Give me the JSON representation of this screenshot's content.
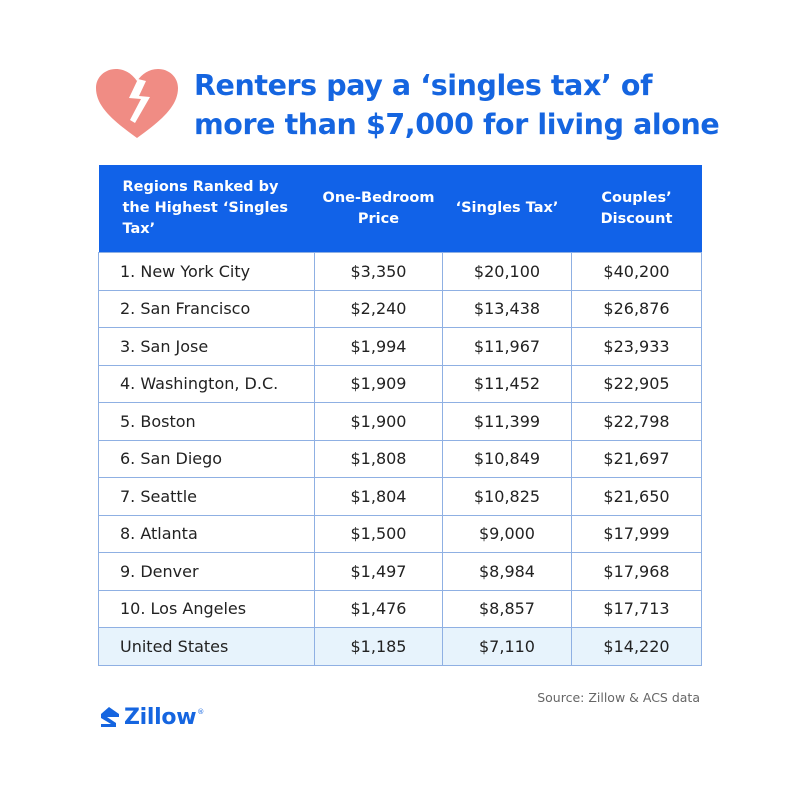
{
  "title": {
    "line1": "Renters pay a ‘singles tax’ of",
    "line2": "more than $7,000 for living alone"
  },
  "icons": {
    "header_icon": "broken-heart-icon",
    "logo_icon": "zillow-house-icon"
  },
  "colors": {
    "accent": "#1565e0",
    "header_bg": "#1162e8",
    "heart": "#f08c84",
    "us_row_bg": "#e7f3fc",
    "border": "#8fb0e3"
  },
  "table": {
    "headers": {
      "region": "Regions Ranked by the Highest ‘Singles Tax’",
      "price": "One-Bedroom Price",
      "singles_tax": "‘Singles Tax’",
      "discount": "Couples’ Discount"
    },
    "rows": [
      {
        "region": "1. New York City",
        "price": "$3,350",
        "singles_tax": "$20,100",
        "discount": "$40,200"
      },
      {
        "region": "2. San Francisco",
        "price": "$2,240",
        "singles_tax": "$13,438",
        "discount": "$26,876"
      },
      {
        "region": "3. San Jose",
        "price": "$1,994",
        "singles_tax": "$11,967",
        "discount": "$23,933"
      },
      {
        "region": "4. Washington, D.C.",
        "price": "$1,909",
        "singles_tax": "$11,452",
        "discount": "$22,905"
      },
      {
        "region": "5. Boston",
        "price": "$1,900",
        "singles_tax": "$11,399",
        "discount": "$22,798"
      },
      {
        "region": "6. San Diego",
        "price": "$1,808",
        "singles_tax": "$10,849",
        "discount": "$21,697"
      },
      {
        "region": "7. Seattle",
        "price": "$1,804",
        "singles_tax": "$10,825",
        "discount": "$21,650"
      },
      {
        "region": "8. Atlanta",
        "price": "$1,500",
        "singles_tax": "$9,000",
        "discount": "$17,999"
      },
      {
        "region": "9. Denver",
        "price": "$1,497",
        "singles_tax": "$8,984",
        "discount": "$17,968"
      },
      {
        "region": "10. Los Angeles",
        "price": "$1,476",
        "singles_tax": "$8,857",
        "discount": "$17,713"
      },
      {
        "region": "United States",
        "price": "$1,185",
        "singles_tax": "$7,110",
        "discount": "$14,220"
      }
    ]
  },
  "source": "Source: Zillow & ACS data",
  "logo": {
    "text": "Zillow",
    "mark": "®"
  }
}
